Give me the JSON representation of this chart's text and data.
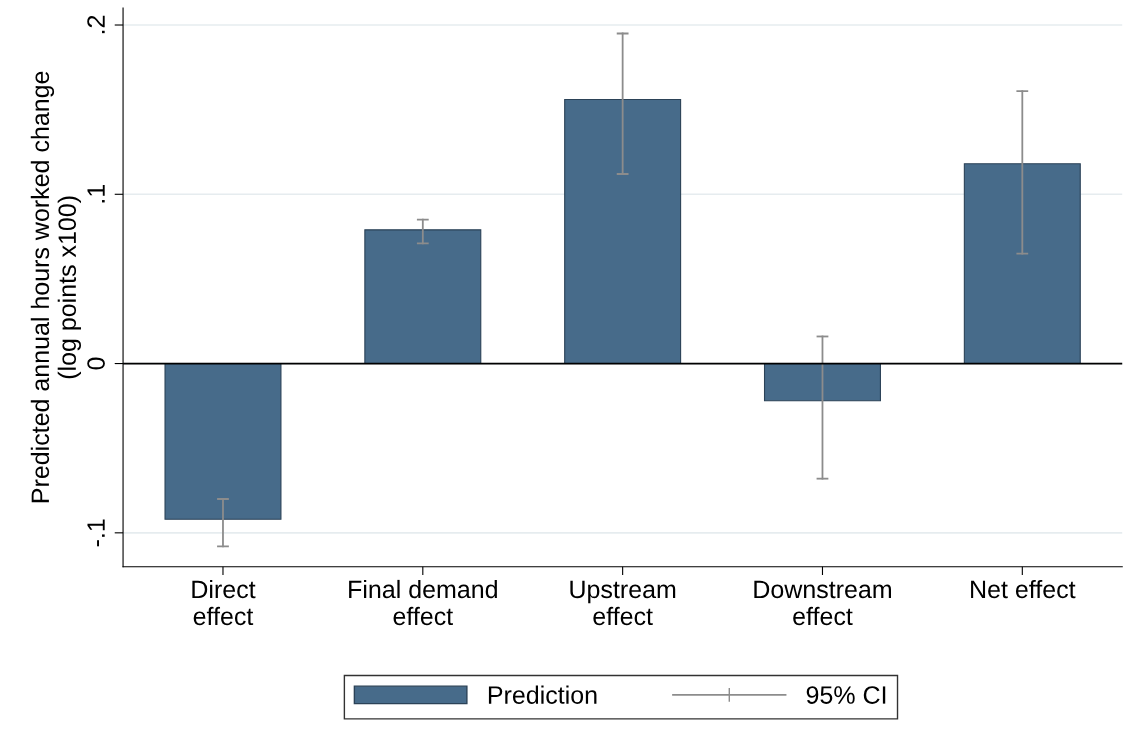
{
  "chart_data": {
    "type": "bar",
    "ylabel": "Predicted annual hours worked change\n(log points x100)",
    "categories": [
      "Direct\neffect",
      "Final demand\neffect",
      "Upstream\neffect",
      "Downstream\neffect",
      "Net effect"
    ],
    "series": [
      {
        "name": "Prediction",
        "color": "#476b8a",
        "values": [
          -0.092,
          0.079,
          0.156,
          -0.022,
          0.118
        ],
        "errors": [
          [
            -0.108,
            -0.08
          ],
          [
            0.071,
            0.085
          ],
          [
            0.112,
            0.195
          ],
          [
            -0.068,
            0.016
          ],
          [
            0.065,
            0.161
          ]
        ]
      }
    ],
    "ylim": [
      -0.12,
      0.21
    ],
    "yticks": [
      {
        "value": -0.1,
        "label": "-.1"
      },
      {
        "value": 0,
        "label": "0"
      },
      {
        "value": 0.1,
        "label": ".1"
      },
      {
        "value": 0.2,
        "label": ".2"
      }
    ],
    "ref_lines": [
      {
        "axis": "y",
        "value": 0,
        "color": "#000000"
      }
    ],
    "grid": "y",
    "legend": "bottom",
    "annotations": [
      "95% CI"
    ]
  }
}
